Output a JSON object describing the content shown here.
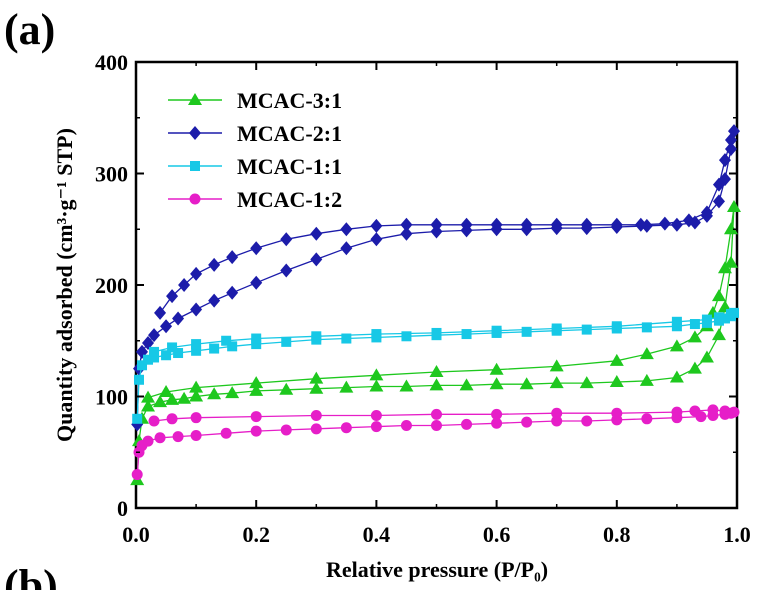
{
  "panel_labels": {
    "top": "(a)",
    "bottom": "(b)"
  },
  "colors": {
    "MCAC-3:1": "#1ec81e",
    "MCAC-2:1": "#1c1caa",
    "MCAC-1:1": "#17c8e6",
    "MCAC-1:2": "#e61ec8"
  },
  "chart_data": {
    "type": "line",
    "xlabel": "Relative pressure (P/P₀)",
    "ylabel": "Quantity adsorbed (cm³·g⁻¹ STP)",
    "xlim": [
      0.0,
      1.0
    ],
    "ylim": [
      0,
      400
    ],
    "xticks": [
      "0.0",
      "0.2",
      "0.4",
      "0.6",
      "0.8",
      "1.0"
    ],
    "yticks": [
      "0",
      "100",
      "200",
      "300",
      "400"
    ],
    "legend_position": "top-left",
    "grid": false,
    "series": [
      {
        "name": "MCAC-3:1",
        "marker": "triangle",
        "x": [
          0.002,
          0.005,
          0.01,
          0.02,
          0.04,
          0.06,
          0.08,
          0.1,
          0.13,
          0.16,
          0.2,
          0.25,
          0.3,
          0.35,
          0.4,
          0.45,
          0.5,
          0.55,
          0.6,
          0.65,
          0.7,
          0.75,
          0.8,
          0.85,
          0.9,
          0.93,
          0.95,
          0.97,
          0.98,
          0.99,
          0.995,
          0.99,
          0.98,
          0.97,
          0.96,
          0.95,
          0.93,
          0.9,
          0.85,
          0.8,
          0.7,
          0.6,
          0.5,
          0.4,
          0.3,
          0.2,
          0.1,
          0.05,
          0.02
        ],
        "y": [
          25,
          60,
          80,
          91,
          95,
          97,
          98,
          100,
          102,
          103,
          105,
          106,
          107,
          108,
          109,
          109,
          110,
          110,
          111,
          111,
          112,
          112,
          113,
          114,
          117,
          125,
          135,
          155,
          180,
          220,
          270,
          250,
          215,
          190,
          175,
          163,
          153,
          145,
          138,
          132,
          127,
          124,
          122,
          119,
          116,
          112,
          108,
          104,
          99
        ]
      },
      {
        "name": "MCAC-2:1",
        "marker": "diamond",
        "x": [
          0.002,
          0.005,
          0.01,
          0.02,
          0.03,
          0.05,
          0.07,
          0.1,
          0.13,
          0.16,
          0.2,
          0.25,
          0.3,
          0.35,
          0.4,
          0.45,
          0.5,
          0.55,
          0.6,
          0.65,
          0.7,
          0.75,
          0.8,
          0.85,
          0.9,
          0.93,
          0.95,
          0.97,
          0.98,
          0.99,
          0.995,
          0.99,
          0.98,
          0.97,
          0.95,
          0.92,
          0.88,
          0.84,
          0.8,
          0.75,
          0.7,
          0.65,
          0.6,
          0.55,
          0.5,
          0.45,
          0.4,
          0.35,
          0.3,
          0.25,
          0.2,
          0.16,
          0.13,
          0.1,
          0.08,
          0.06,
          0.04
        ],
        "y": [
          75,
          125,
          140,
          148,
          155,
          163,
          170,
          178,
          186,
          193,
          202,
          213,
          223,
          233,
          241,
          246,
          248,
          249,
          250,
          250,
          251,
          251,
          252,
          253,
          254,
          256,
          262,
          275,
          295,
          322,
          338,
          330,
          312,
          290,
          265,
          258,
          255,
          254,
          254,
          254,
          254,
          254,
          254,
          254,
          254,
          254,
          253,
          250,
          246,
          241,
          233,
          225,
          218,
          210,
          200,
          190,
          175
        ]
      },
      {
        "name": "MCAC-1:1",
        "marker": "square",
        "x": [
          0.002,
          0.005,
          0.01,
          0.02,
          0.03,
          0.05,
          0.07,
          0.1,
          0.13,
          0.16,
          0.2,
          0.25,
          0.3,
          0.35,
          0.4,
          0.45,
          0.5,
          0.55,
          0.6,
          0.65,
          0.7,
          0.75,
          0.8,
          0.85,
          0.9,
          0.93,
          0.95,
          0.97,
          0.98,
          0.99,
          0.995,
          0.99,
          0.97,
          0.95,
          0.9,
          0.8,
          0.7,
          0.6,
          0.5,
          0.4,
          0.3,
          0.2,
          0.15,
          0.1,
          0.06,
          0.03
        ],
        "y": [
          80,
          115,
          128,
          133,
          135,
          137,
          139,
          141,
          143,
          145,
          147,
          149,
          151,
          152,
          153,
          154,
          155,
          156,
          157,
          158,
          159,
          160,
          161,
          162,
          163,
          165,
          166,
          168,
          170,
          172,
          175,
          174,
          171,
          169,
          167,
          163,
          161,
          159,
          157,
          156,
          154,
          152,
          150,
          147,
          144,
          140
        ]
      },
      {
        "name": "MCAC-1:2",
        "marker": "circle",
        "x": [
          0.002,
          0.005,
          0.01,
          0.02,
          0.04,
          0.07,
          0.1,
          0.15,
          0.2,
          0.25,
          0.3,
          0.35,
          0.4,
          0.45,
          0.5,
          0.55,
          0.6,
          0.65,
          0.7,
          0.75,
          0.8,
          0.85,
          0.9,
          0.94,
          0.96,
          0.98,
          0.99,
          0.995,
          0.98,
          0.96,
          0.93,
          0.9,
          0.8,
          0.7,
          0.6,
          0.5,
          0.4,
          0.3,
          0.2,
          0.1,
          0.06,
          0.03
        ],
        "y": [
          30,
          50,
          56,
          60,
          63,
          64,
          65,
          67,
          69,
          70,
          71,
          72,
          73,
          74,
          74,
          75,
          76,
          77,
          78,
          78,
          79,
          80,
          81,
          82,
          83,
          84,
          85,
          86,
          87,
          88,
          87,
          86,
          85,
          85,
          84,
          84,
          83,
          83,
          82,
          81,
          80,
          78
        ]
      }
    ]
  }
}
